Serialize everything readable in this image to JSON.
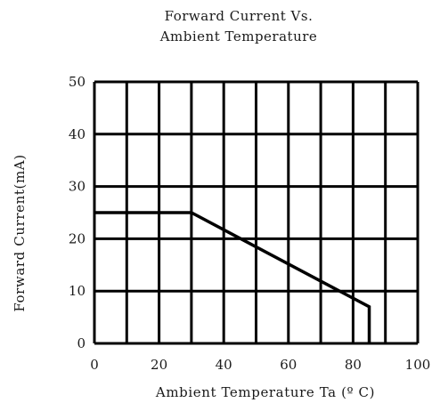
{
  "chart_data": {
    "type": "line",
    "title_line1": "Forward Current Vs.",
    "title_line2": "Ambient Temperature",
    "xlabel": "Ambient Temperature Ta (º C)",
    "ylabel": "Forward Current(mA)",
    "xlim": [
      0,
      100
    ],
    "ylim": [
      0,
      50
    ],
    "x_ticks": [
      "0",
      "20",
      "40",
      "60",
      "80",
      "100"
    ],
    "y_ticks": [
      "0",
      "10",
      "20",
      "30",
      "40",
      "50"
    ],
    "x_tick_values": [
      0,
      20,
      40,
      60,
      80,
      100
    ],
    "y_tick_values": [
      0,
      10,
      20,
      30,
      40,
      50
    ],
    "grid": true,
    "grid_x": [
      0,
      10,
      20,
      30,
      40,
      50,
      60,
      70,
      80,
      90,
      100
    ],
    "grid_y": [
      0,
      10,
      20,
      30,
      40,
      50
    ],
    "series": [
      {
        "x": [
          0,
          30,
          85,
          85
        ],
        "y": [
          25,
          25,
          7,
          0
        ]
      }
    ],
    "colors": {
      "line": "#000000",
      "grid": "#000000"
    }
  }
}
